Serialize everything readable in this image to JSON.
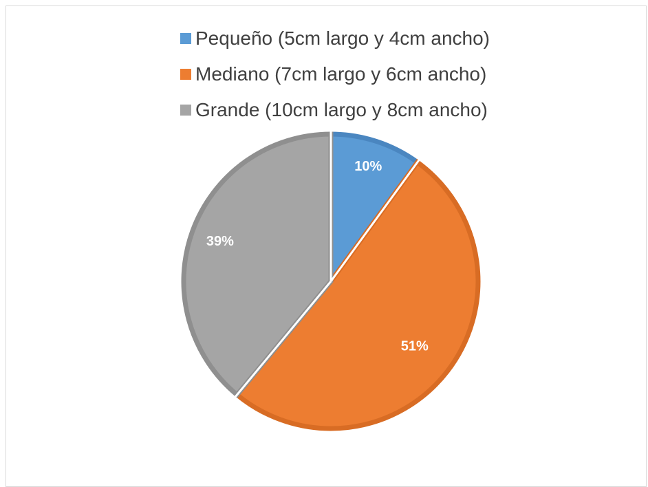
{
  "chart_data": {
    "type": "pie",
    "series": [
      {
        "name": "Pequeño (5cm largo y 4cm ancho)",
        "value": 10,
        "label": "10%",
        "color": "#5b9bd5",
        "edge_color": "#4a86c0"
      },
      {
        "name": "Mediano (7cm largo y 6cm ancho)",
        "value": 51,
        "label": "51%",
        "color": "#ed7d31",
        "edge_color": "#d86c24"
      },
      {
        "name": "Grande (10cm largo y 8cm ancho)",
        "value": 39,
        "label": "39%",
        "color": "#a5a5a5",
        "edge_color": "#8f8f8f"
      }
    ],
    "legend_position": "top",
    "label_color": "#ffffff"
  }
}
